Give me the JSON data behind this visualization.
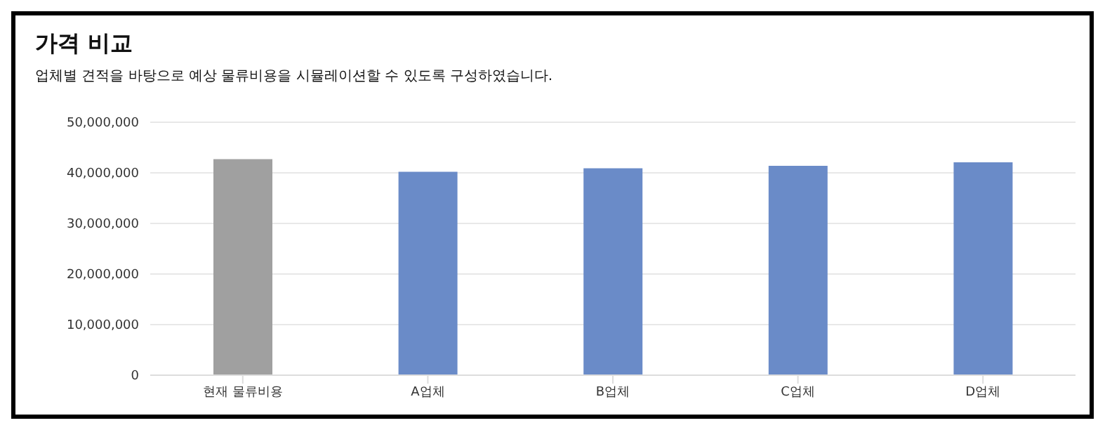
{
  "chart_data": {
    "type": "bar",
    "title": "가격 비교",
    "subtitle": "업체별 견적을 바탕으로 예상 물류비용을 시뮬레이션할 수 있도록 구성하였습니다.",
    "categories": [
      "현재 물류비용",
      "A업체",
      "B업체",
      "C업체",
      "D업체"
    ],
    "values": [
      42700000,
      40200000,
      40900000,
      41400000,
      42100000
    ],
    "colors": [
      "#a0a0a0",
      "#6a8bc8",
      "#6a8bc8",
      "#6a8bc8",
      "#6a8bc8"
    ],
    "ylim": [
      0,
      50000000
    ],
    "yticks": [
      0,
      {
        "value": 10000000,
        "label": "10,000,000"
      },
      {
        "value": 20000000,
        "label": "20,000,000"
      },
      {
        "value": 30000000,
        "label": "30,000,000"
      },
      {
        "value": 40000000,
        "label": "40,000,000"
      },
      {
        "value": 50000000,
        "label": "50,000,000"
      }
    ],
    "grid": "y"
  }
}
